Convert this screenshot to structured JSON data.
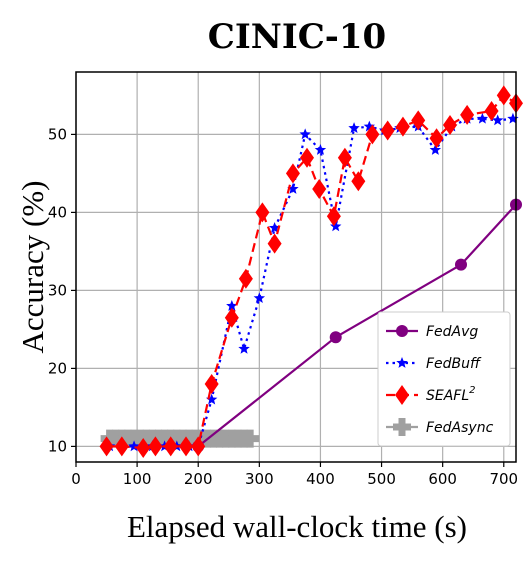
{
  "chart_data": {
    "type": "line",
    "title": "CINIC-10",
    "xlabel": "Elapsed wall-clock time (s)",
    "ylabel": "Accuracy (%)",
    "xlim": [
      0,
      720
    ],
    "ylim": [
      8,
      58
    ],
    "xticks": [
      0,
      100,
      200,
      300,
      400,
      500,
      600,
      700
    ],
    "yticks": [
      10,
      20,
      30,
      40,
      50
    ],
    "grid": true,
    "legend_position": "lower-right",
    "series": [
      {
        "name": "FedAvg",
        "color": "#800080",
        "line_style": "solid",
        "marker": "circle",
        "x": [
          200,
          425,
          630,
          720
        ],
        "y": [
          10,
          24,
          33.3,
          41
        ]
      },
      {
        "name": "FedBuff",
        "color": "#0000ff",
        "line_style": "dotted",
        "marker": "star",
        "x": [
          55,
          75,
          95,
          110,
          125,
          145,
          165,
          185,
          200,
          222,
          255,
          275,
          300,
          325,
          355,
          375,
          400,
          425,
          455,
          480,
          505,
          530,
          560,
          588,
          615,
          640,
          665,
          690,
          715
        ],
        "y": [
          10,
          10,
          10,
          10,
          10,
          10,
          10,
          10,
          10,
          16,
          28,
          22.5,
          29,
          38,
          43,
          50,
          48,
          38.2,
          50.8,
          51,
          50.5,
          50.8,
          51,
          48,
          51,
          52,
          52,
          51.8,
          52
        ]
      },
      {
        "name": "SEAFL",
        "name_superscript": "2",
        "color": "#ff0000",
        "line_style": "dashed",
        "marker": "diamond",
        "x": [
          50,
          75,
          110,
          130,
          155,
          180,
          200,
          222,
          255,
          278,
          305,
          325,
          355,
          378,
          398,
          422,
          440,
          462,
          485,
          510,
          535,
          560,
          590,
          612,
          640,
          680,
          700,
          720
        ],
        "y": [
          10,
          10,
          9.8,
          10,
          10,
          10,
          10,
          18,
          26.5,
          31.5,
          40,
          36,
          45,
          47,
          43,
          39.5,
          47,
          44,
          50,
          50.5,
          51,
          51.8,
          49.5,
          51.2,
          52.5,
          53,
          55,
          54
        ]
      },
      {
        "name": "FedAsync",
        "color": "#a0a0a0",
        "line_style": "solid",
        "marker": "plus",
        "x": [
          55,
          65,
          75,
          85,
          95,
          105,
          115,
          125,
          135,
          145,
          155,
          165,
          175,
          185,
          195,
          205,
          215,
          225,
          235,
          245,
          255,
          265,
          275,
          285
        ],
        "y": [
          11,
          11,
          11,
          11,
          11,
          11,
          11,
          11,
          11,
          11,
          11,
          11,
          11,
          11,
          11,
          11,
          11,
          11,
          11,
          11,
          11,
          11,
          11,
          11
        ]
      }
    ]
  }
}
